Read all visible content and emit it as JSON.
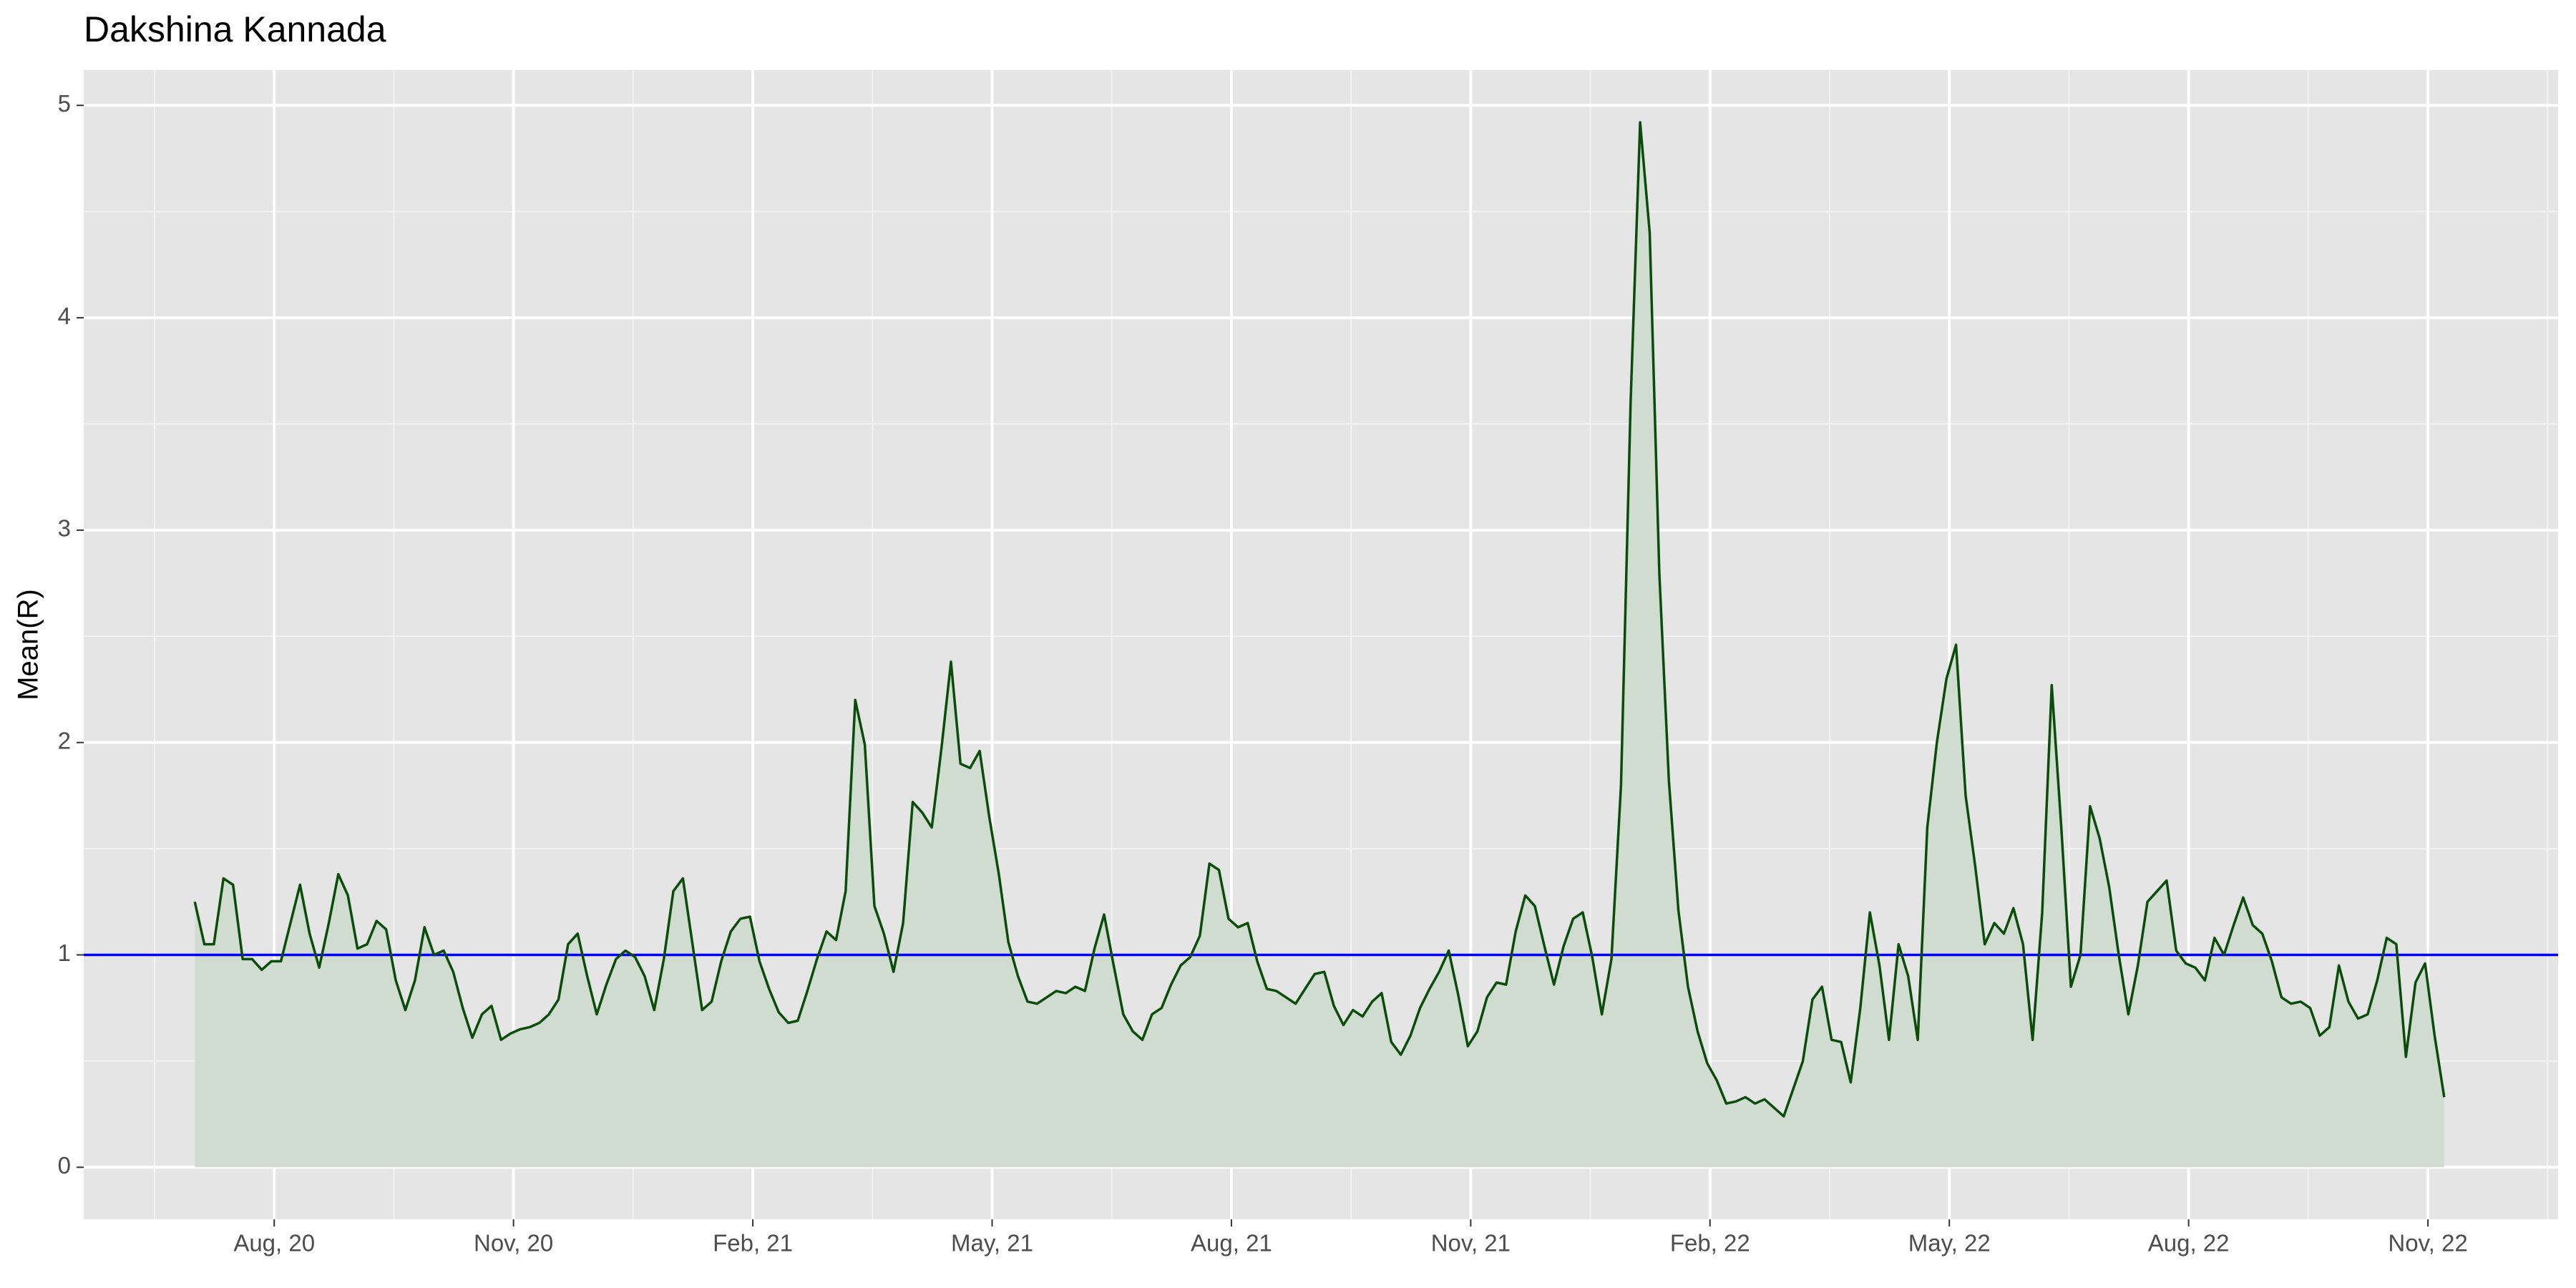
{
  "chart_data": {
    "type": "line",
    "title": "Dakshina Kannada",
    "y_label": "Mean(R)",
    "x": [
      2020.5,
      2020.51,
      2020.52,
      2020.53,
      2020.54,
      2020.55,
      2020.56,
      2020.57,
      2020.58,
      2020.59,
      2020.6,
      2020.61,
      2020.62,
      2020.63,
      2020.64,
      2020.65,
      2020.66,
      2020.67,
      2020.68,
      2020.69,
      2020.7,
      2020.71,
      2020.72,
      2020.73,
      2020.74,
      2020.75,
      2020.76,
      2020.77,
      2020.78,
      2020.79,
      2020.8,
      2020.81,
      2020.82,
      2020.83,
      2020.84,
      2020.85,
      2020.86,
      2020.87,
      2020.88,
      2020.89,
      2020.9,
      2020.91,
      2020.92,
      2020.93,
      2020.94,
      2020.95,
      2020.96,
      2020.97,
      2020.98,
      2020.99,
      2021.0,
      2021.01,
      2021.02,
      2021.03,
      2021.04,
      2021.05,
      2021.06,
      2021.07,
      2021.08,
      2021.09,
      2021.1,
      2021.11,
      2021.12,
      2021.13,
      2021.14,
      2021.15,
      2021.16,
      2021.17,
      2021.18,
      2021.19,
      2021.2,
      2021.21,
      2021.22,
      2021.23,
      2021.24,
      2021.25,
      2021.26,
      2021.27,
      2021.28,
      2021.29,
      2021.3,
      2021.31,
      2021.32,
      2021.33,
      2021.34,
      2021.35,
      2021.36,
      2021.37,
      2021.38,
      2021.39,
      2021.4,
      2021.41,
      2021.42,
      2021.43,
      2021.44,
      2021.45,
      2021.46,
      2021.47,
      2021.48,
      2021.49,
      2021.5,
      2021.51,
      2021.52,
      2021.53,
      2021.54,
      2021.55,
      2021.56,
      2021.57,
      2021.58,
      2021.59,
      2021.6,
      2021.61,
      2021.62,
      2021.63,
      2021.64,
      2021.65,
      2021.66,
      2021.67,
      2021.68,
      2021.69,
      2021.7,
      2021.71,
      2021.72,
      2021.73,
      2021.74,
      2021.75,
      2021.76,
      2021.77,
      2021.78,
      2021.79,
      2021.8,
      2021.81,
      2021.82,
      2021.83,
      2021.84,
      2021.85,
      2021.86,
      2021.87,
      2021.88,
      2021.89,
      2021.9,
      2021.91,
      2021.92,
      2021.93,
      2021.94,
      2021.95,
      2021.96,
      2021.97,
      2021.98,
      2021.99,
      2022.0,
      2022.01,
      2022.02,
      2022.03,
      2022.04,
      2022.05,
      2022.06,
      2022.07,
      2022.08,
      2022.09,
      2022.1,
      2022.11,
      2022.12,
      2022.13,
      2022.14,
      2022.15,
      2022.16,
      2022.17,
      2022.18,
      2022.19,
      2022.2,
      2022.21,
      2022.22,
      2022.23,
      2022.24,
      2022.25,
      2022.26,
      2022.27,
      2022.28,
      2022.29,
      2022.3,
      2022.31,
      2022.32,
      2022.33,
      2022.34,
      2022.35,
      2022.36,
      2022.37,
      2022.38,
      2022.39,
      2022.4,
      2022.41,
      2022.42,
      2022.43,
      2022.44,
      2022.45,
      2022.46,
      2022.47,
      2022.48,
      2022.49,
      2022.5,
      2022.51,
      2022.52,
      2022.53,
      2022.54,
      2022.55,
      2022.56,
      2022.57,
      2022.58,
      2022.59,
      2022.6,
      2022.61,
      2022.62,
      2022.63,
      2022.64,
      2022.65,
      2022.66,
      2022.67,
      2022.68,
      2022.69,
      2022.7,
      2022.71,
      2022.72,
      2022.73,
      2022.74,
      2022.75,
      2022.76,
      2022.77,
      2022.78,
      2022.79,
      2022.8,
      2022.81,
      2022.82,
      2022.83,
      2022.84,
      2022.85
    ],
    "values": [
      1.25,
      1.05,
      1.05,
      1.36,
      1.33,
      0.98,
      0.98,
      0.93,
      0.97,
      0.97,
      1.15,
      1.33,
      1.1,
      0.94,
      1.15,
      1.38,
      1.28,
      1.03,
      1.05,
      1.16,
      1.12,
      0.88,
      0.74,
      0.88,
      1.13,
      1.0,
      1.02,
      0.92,
      0.75,
      0.61,
      0.72,
      0.76,
      0.6,
      0.63,
      0.65,
      0.66,
      0.68,
      0.72,
      0.79,
      1.05,
      1.1,
      0.9,
      0.72,
      0.86,
      0.98,
      1.02,
      0.99,
      0.9,
      0.74,
      0.98,
      1.3,
      1.36,
      1.05,
      0.74,
      0.78,
      0.97,
      1.11,
      1.17,
      1.18,
      0.97,
      0.84,
      0.73,
      0.68,
      0.69,
      0.83,
      0.98,
      1.11,
      1.07,
      1.3,
      2.2,
      1.99,
      1.23,
      1.1,
      0.92,
      1.15,
      1.72,
      1.67,
      1.6,
      1.97,
      2.38,
      1.9,
      1.88,
      1.96,
      1.65,
      1.38,
      1.06,
      0.9,
      0.78,
      0.77,
      0.8,
      0.83,
      0.82,
      0.85,
      0.83,
      1.03,
      1.19,
      0.95,
      0.72,
      0.64,
      0.6,
      0.72,
      0.75,
      0.86,
      0.95,
      0.99,
      1.09,
      1.43,
      1.4,
      1.17,
      1.13,
      1.15,
      0.97,
      0.84,
      0.83,
      0.8,
      0.77,
      0.84,
      0.91,
      0.92,
      0.76,
      0.67,
      0.74,
      0.71,
      0.78,
      0.82,
      0.59,
      0.53,
      0.62,
      0.75,
      0.84,
      0.92,
      1.02,
      0.81,
      0.57,
      0.64,
      0.8,
      0.87,
      0.86,
      1.11,
      1.28,
      1.23,
      1.04,
      0.86,
      1.04,
      1.17,
      1.2,
      0.99,
      0.72,
      0.98,
      1.8,
      3.6,
      4.92,
      4.4,
      2.8,
      1.82,
      1.21,
      0.85,
      0.64,
      0.49,
      0.41,
      0.3,
      0.31,
      0.33,
      0.3,
      0.32,
      0.28,
      0.24,
      0.37,
      0.5,
      0.79,
      0.85,
      0.6,
      0.59,
      0.4,
      0.75,
      1.2,
      0.95,
      0.6,
      1.05,
      0.9,
      0.6,
      1.6,
      2.0,
      2.3,
      2.46,
      1.75,
      1.42,
      1.05,
      1.15,
      1.1,
      1.22,
      1.05,
      0.6,
      1.2,
      2.27,
      1.6,
      0.85,
      1.0,
      1.7,
      1.55,
      1.32,
      1.0,
      0.72,
      0.95,
      1.25,
      1.3,
      1.35,
      1.02,
      0.96,
      0.94,
      0.88,
      1.08,
      1.0,
      1.14,
      1.27,
      1.14,
      1.1,
      0.97,
      0.8,
      0.77,
      0.78,
      0.75,
      0.62,
      0.66,
      0.95,
      0.78,
      0.7,
      0.72,
      0.88,
      1.08,
      1.05,
      0.52,
      0.87,
      0.96,
      0.62,
      0.33
    ],
    "color": "#0a4d0a",
    "area": true,
    "area_color": "#d1dcd1",
    "hline": {
      "value": 1,
      "color": "#0000ff"
    },
    "xlim": [
      2020.384,
      2022.969
    ],
    "xticks": [
      {
        "value": 2020.583,
        "label": "Aug, 20"
      },
      {
        "value": 2020.833,
        "label": "Nov, 20"
      },
      {
        "value": 2021.083,
        "label": "Feb, 21"
      },
      {
        "value": 2021.333,
        "label": "May, 21"
      },
      {
        "value": 2021.583,
        "label": "Aug, 21"
      },
      {
        "value": 2021.833,
        "label": "Nov, 21"
      },
      {
        "value": 2022.083,
        "label": "Feb, 22"
      },
      {
        "value": 2022.333,
        "label": "May, 22"
      },
      {
        "value": 2022.583,
        "label": "Aug, 22"
      },
      {
        "value": 2022.833,
        "label": "Nov, 22"
      }
    ],
    "ylim": [
      -0.245,
      5.166
    ],
    "yticks": [
      0,
      1,
      2,
      3,
      4,
      5
    ],
    "grid": true,
    "minor_grid": true
  }
}
